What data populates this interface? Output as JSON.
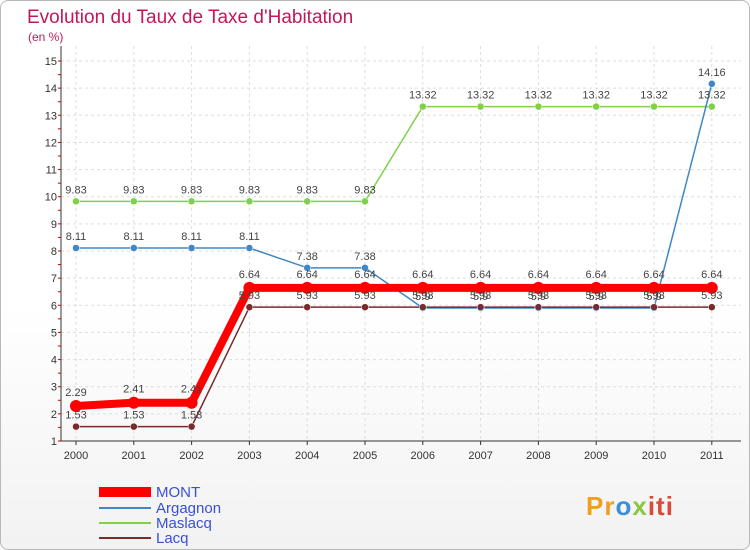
{
  "header": {
    "title": "Evolution du Taux de Taxe d'Habitation",
    "unit": "(en %)"
  },
  "chart_data": {
    "type": "line",
    "title": "Evolution du Taux de Taxe d'Habitation",
    "ylabel": "(en %)",
    "xlabel": "",
    "ylim": [
      1,
      15
    ],
    "x": [
      "2000",
      "2001",
      "2002",
      "2003",
      "2004",
      "2005",
      "2006",
      "2007",
      "2008",
      "2009",
      "2010",
      "2011"
    ],
    "y_ticks": [
      "1",
      "2",
      "3",
      "4",
      "5",
      "6",
      "7",
      "8",
      "9",
      "10",
      "11",
      "12",
      "13",
      "14",
      "15"
    ],
    "series": [
      {
        "name": "MONT",
        "color": "#ff0000",
        "values": [
          2.29,
          2.41,
          2.41,
          6.64,
          6.64,
          6.64,
          6.64,
          6.64,
          6.64,
          6.64,
          6.64,
          6.64
        ],
        "labels": [
          "2.29",
          "2.41",
          "2.41",
          "6.64",
          "6.64",
          "6.64",
          "6.64",
          "6.64",
          "6.64",
          "6.64",
          "6.64",
          "6.64"
        ]
      },
      {
        "name": "Argagnon",
        "color": "#3f88c5",
        "values": [
          8.11,
          8.11,
          8.11,
          8.11,
          7.38,
          7.38,
          5.9,
          5.9,
          5.9,
          5.9,
          5.9,
          14.16
        ],
        "labels": [
          "8.11",
          "8.11",
          "8.11",
          "8.11",
          "7.38",
          "7.38",
          "5.9",
          "5.9",
          "5.9",
          "5.9",
          "5.9",
          "14.16"
        ]
      },
      {
        "name": "Maslacq",
        "color": "#80d048",
        "values": [
          9.83,
          9.83,
          9.83,
          9.83,
          9.83,
          9.83,
          13.32,
          13.32,
          13.32,
          13.32,
          13.32,
          13.32
        ],
        "labels": [
          "9.83",
          "9.83",
          "9.83",
          "9.83",
          "9.83",
          "9.83",
          "13.32",
          "13.32",
          "13.32",
          "13.32",
          "13.32",
          "13.32"
        ]
      },
      {
        "name": "Lacq",
        "color": "#7a2a2a",
        "values": [
          1.53,
          1.53,
          1.53,
          5.93,
          5.93,
          5.93,
          5.93,
          5.93,
          5.93,
          5.93,
          5.93,
          5.93
        ],
        "labels": [
          "1.53",
          "1.53",
          "1.53",
          "5.93",
          "5.93",
          "5.93",
          "5.93",
          "5.93",
          "5.93",
          "5.93",
          "5.93",
          "5.93"
        ]
      }
    ],
    "legend": "bottom-left"
  },
  "legend": {
    "items": [
      {
        "label": "MONT",
        "color": "#ff0000"
      },
      {
        "label": "Argagnon",
        "color": "#3f88c5"
      },
      {
        "label": "Maslacq",
        "color": "#80d048"
      },
      {
        "label": "Lacq",
        "color": "#7a2a2a"
      }
    ]
  },
  "brand": {
    "p1": "Pr",
    "p2": "o",
    "p3": "x",
    "p4": "iti"
  }
}
